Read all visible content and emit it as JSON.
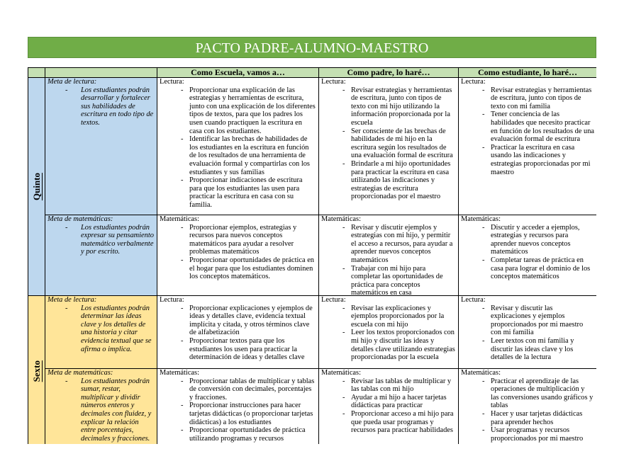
{
  "title": "PACTO PADRE-ALUMNO-MAESTRO",
  "colors": {
    "title_bar": "#70ad47",
    "header": "#c5e0b3",
    "quinto": "#bdd7ee",
    "sexto": "#ffe599"
  },
  "headers": [
    "",
    "",
    "Como Escuela, vamos a…",
    "Como padre, lo haré…",
    "Como estudiante, lo haré…"
  ],
  "grades": [
    {
      "name": "Quinto",
      "color": "blue",
      "rows": [
        {
          "goal_label": "Meta de lectura:",
          "goal_items": [
            "Los estudiantes podrán desarrollar y fortalecer sus habilidades de escritura en todo tipo de textos."
          ],
          "school": {
            "label": "Lectura:",
            "items": [
              "Proporcionar una explicación de las estrategias y herramientas de escritura, junto con una explicación de los diferentes tipos de textos, para que los padres los usen cuando practiquen la escritura en casa con los estudiantes.",
              "Identificar las brechas de habilidades de los estudiantes en la escritura en función de los resultados de una herramienta de evaluación formal y compartirlas con los estudiantes y sus familias",
              "Proporcionar indicaciones de escritura para que los estudiantes las usen para practicar la escritura en casa con su familia."
            ]
          },
          "parent": {
            "label": "Lectura:",
            "items": [
              "Revisar estrategias y herramientas de escritura, junto con tipos de texto con mi hijo utilizando la información proporcionada por la escuela",
              "Ser consciente de las brechas de habilidades de mi hijo en la escritura según los resultados de una evaluación formal de escritura",
              "Brindarle a mi hijo oportunidades para practicar la escritura en casa utilizando las indicaciones y estrategias de escritura proporcionadas por el maestro"
            ]
          },
          "student": {
            "label": "Lectura:",
            "items": [
              "Revisar estrategias y herramientas de escritura, junto con tipos de texto con mi familia",
              "Tener conciencia de las habilidades que necesito practicar en función de los resultados de una evaluación formal de escritura",
              "Practicar la escritura en casa usando las indicaciones y estrategias proporcionadas por mi maestro"
            ]
          }
        },
        {
          "goal_label": "Meta de matemáticas:",
          "goal_items": [
            "Los estudiantes podrán expresar su pensamiento matemático verbalmente y por escrito."
          ],
          "school": {
            "label": "Matemáticas:",
            "items": [
              "Proporcionar ejemplos, estrategias y recursos para nuevos conceptos matemáticos para ayudar a resolver problemas matemáticos",
              "Proporcionar oportunidades de práctica en el hogar para que los estudiantes dominen los conceptos matemáticos."
            ]
          },
          "parent": {
            "label": "Matemáticas:",
            "items": [
              "Revisar y discutir ejemplos y estrategias con mi hijo, y permitir el acceso a recursos, para ayudar a aprender nuevos conceptos matemáticos",
              "Trabajar con mi hijo para completar las oportunidades de práctica para conceptos matemáticos en casa"
            ]
          },
          "student": {
            "label": "Matemáticas:",
            "items": [
              "Discutir y acceder a ejemplos, estrategias y recursos para aprender nuevos conceptos matemáticos",
              "Completar tareas de práctica en casa para lograr el dominio de los conceptos matemáticos"
            ]
          }
        }
      ]
    },
    {
      "name": "Sexto",
      "color": "yellow",
      "rows": [
        {
          "goal_label": "Meta de lectura:",
          "goal_items": [
            "Los estudiantes podrán determinar las ideas clave y los detalles de una historia y citar evidencia textual que se afirma o implica."
          ],
          "school": {
            "label": "Lectura:",
            "items": [
              "Proporcionar explicaciones y ejemplos de ideas y detalles clave, evidencia textual implícita y citada, y otros términos clave de alfabetización",
              "Proporcionar textos para que los estudiantes los usen para practicar la determinación de ideas y detalles clave"
            ]
          },
          "parent": {
            "label": "Lectura:",
            "items": [
              "Revisar las explicaciones y ejemplos proporcionados por la escuela con mi hijo",
              "Leer los textos proporcionados con mi hijo y discutir las ideas y detalles clave utilizando estrategias proporcionadas por la escuela"
            ]
          },
          "student": {
            "label": "Lectura:",
            "items": [
              "Revisar y discutir las explicaciones y ejemplos proporcionados por mi maestro con mi familia",
              "Leer textos con mi familia y discutir las ideas clave y los detalles de la lectura"
            ]
          }
        },
        {
          "goal_label": "Meta de matemáticas:",
          "goal_items": [
            "Los estudiantes podrán sumar, restar, multiplicar y dividir números enteros y decimales con fluidez, y explicar la relación entre porcentajes, decimales y fracciones."
          ],
          "school": {
            "label": "Matemáticas:",
            "items": [
              "Proporcionar tablas de multiplicar y tablas de conversión con decimales, porcentajes y fracciones.",
              "Proporcionar instrucciones para hacer tarjetas didácticas (o proporcionar tarjetas didácticas) a los estudiantes",
              "Proporcionar oportunidades de práctica utilizando programas y recursos"
            ]
          },
          "parent": {
            "label": "Matemáticas:",
            "items": [
              "Revisar las tablas de multiplicar y las tablas con mi hijo",
              "Ayudar a mi hijo a hacer tarjetas didácticas para practicar",
              "Proporcionar acceso a mi hijo para que pueda usar programas y recursos para practicar habilidades"
            ]
          },
          "student": {
            "label": "Matemáticas:",
            "items": [
              "Practicar el aprendizaje de las operaciones de multiplicación y las conversiones usando gráficos y tablas",
              "Hacer y usar tarjetas didácticas para aprender hechos",
              "Usar programas y recursos proporcionados por mi maestro"
            ]
          }
        }
      ]
    }
  ]
}
